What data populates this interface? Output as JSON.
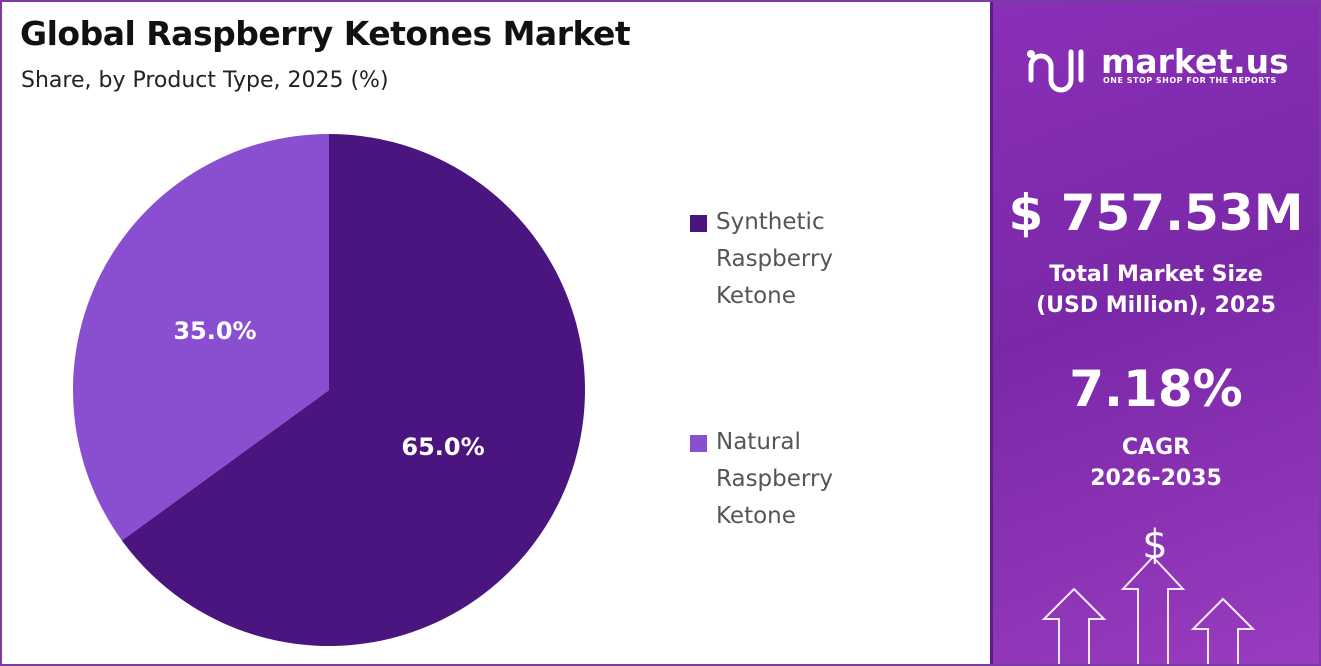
{
  "chart_data": {
    "type": "pie",
    "title": "Global Raspberry Ketones Market",
    "subtitle": "Share, by Product Type, 2025 (%)",
    "categories": [
      "Synthetic Raspberry Ketone",
      "Natural Raspberry Ketone"
    ],
    "values": [
      65,
      35
    ],
    "value_labels": [
      "65.0%",
      "35.0%"
    ],
    "colors": [
      "#4b1580",
      "#8a4fd0"
    ]
  },
  "side_panel": {
    "logo": "market.us",
    "tagline": "ONE STOP SHOP FOR THE REPORTS",
    "market_size": "$ 757.53M",
    "market_size_label": "Total Market Size (USD Million), 2025",
    "cagr": "7.18%",
    "cagr_label": "CAGR 2026-2035"
  }
}
